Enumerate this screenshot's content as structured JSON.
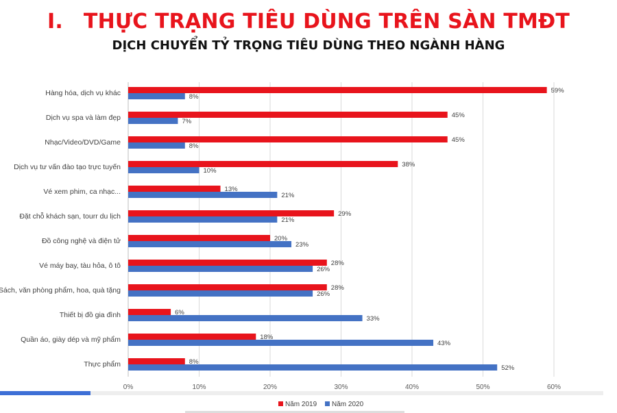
{
  "slide": {
    "title_number": "I.",
    "title": "THỰC TRẠNG TIÊU DÙNG TRÊN SÀN TMĐT",
    "subtitle": "DỊCH CHUYỂN TỶ TRỌNG TIÊU DÙNG THEO NGÀNH HÀNG"
  },
  "playback": {
    "progress": 0.15
  },
  "chart_data": {
    "type": "bar",
    "orientation": "horizontal",
    "categories": [
      "Hàng hóa, dịch vụ khác",
      "Dịch vụ spa và làm đẹp",
      "Nhạc/Video/DVD/Game",
      "Dịch vụ tư vấn đào tạo trực tuyến",
      "Vé xem phim, ca nhạc...",
      "Đặt chỗ khách sạn, tourr du lịch",
      "Đồ công nghệ và điện tử",
      "Vé máy bay, tàu hỏa, ô tô",
      "Sách, văn phòng phẩm, hoa, quà tặng",
      "Thiết bị đồ gia đình",
      "Quần áo, giày dép và mỹ phẩm",
      "Thực phẩm"
    ],
    "series": [
      {
        "name": "Năm 2019",
        "color": "#e8141c",
        "values": [
          59,
          45,
          45,
          38,
          13,
          29,
          20,
          28,
          28,
          6,
          18,
          8
        ]
      },
      {
        "name": "Năm 2020",
        "color": "#4472c4",
        "values": [
          8,
          7,
          8,
          10,
          21,
          21,
          23,
          26,
          26,
          33,
          43,
          52
        ]
      }
    ],
    "value_suffix": "%",
    "xlim": [
      0,
      60
    ],
    "xticks": [
      "0%",
      "10%",
      "20%",
      "30%",
      "40%",
      "50%",
      "60%"
    ],
    "grid": true,
    "legend_position": "bottom"
  }
}
